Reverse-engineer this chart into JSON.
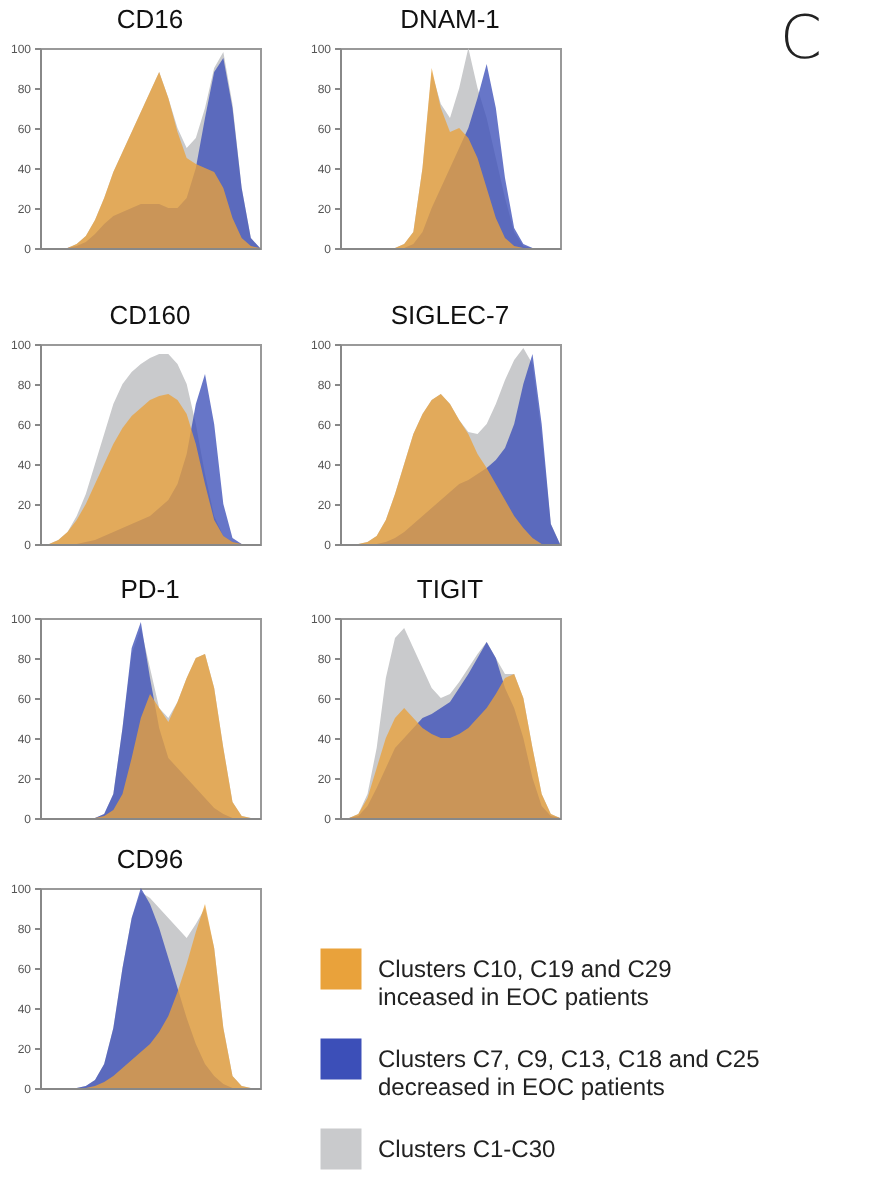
{
  "chart_data": [
    {
      "type": "area",
      "title": "CD16",
      "categories": [
        null,
        null,
        null,
        null,
        null,
        null,
        null,
        null,
        null,
        null,
        null,
        null,
        null,
        null,
        null,
        null,
        null,
        null,
        null,
        null,
        null,
        null,
        null,
        null,
        null
      ],
      "ylim": [
        0,
        100
      ],
      "yticks": [
        0,
        20,
        40,
        60,
        80,
        100
      ],
      "tick_labels": "y",
      "series": [
        {
          "color": "#e9a23b",
          "values": [
            0,
            0,
            0,
            0,
            2,
            6,
            14,
            25,
            38,
            48,
            58,
            68,
            78,
            88,
            75,
            58,
            45,
            42,
            40,
            38,
            30,
            15,
            5,
            1,
            0
          ]
        },
        {
          "color": "#3c4fb8",
          "values": [
            0,
            0,
            0,
            0,
            1,
            3,
            7,
            12,
            16,
            18,
            20,
            22,
            22,
            22,
            20,
            20,
            25,
            40,
            65,
            88,
            95,
            70,
            30,
            5,
            0
          ]
        },
        {
          "color": "#c9cacc",
          "values": [
            0,
            0,
            0,
            0,
            2,
            6,
            14,
            25,
            38,
            48,
            58,
            68,
            78,
            88,
            75,
            60,
            50,
            55,
            70,
            90,
            98,
            72,
            30,
            5,
            0
          ]
        }
      ]
    },
    {
      "type": "area",
      "title": "DNAM-1",
      "annotations": [
        "C"
      ],
      "categories": [
        null,
        null,
        null,
        null,
        null,
        null,
        null,
        null,
        null,
        null,
        null,
        null,
        null,
        null,
        null,
        null,
        null,
        null,
        null,
        null,
        null,
        null,
        null,
        null,
        null
      ],
      "ylim": [
        0,
        100
      ],
      "yticks": [
        0,
        20,
        40,
        60,
        80,
        100
      ],
      "tick_labels": "y",
      "series": [
        {
          "color": "#e9a23b",
          "values": [
            0,
            0,
            0,
            0,
            0,
            0,
            0,
            2,
            8,
            40,
            90,
            70,
            58,
            60,
            55,
            45,
            30,
            15,
            5,
            1,
            0,
            0,
            0,
            0,
            0
          ]
        },
        {
          "color": "#3c4fb8",
          "values": [
            0,
            0,
            0,
            0,
            0,
            0,
            0,
            0,
            2,
            8,
            20,
            30,
            40,
            50,
            60,
            75,
            92,
            70,
            35,
            10,
            2,
            0,
            0,
            0,
            0
          ]
        },
        {
          "color": "#c9cacc",
          "values": [
            0,
            0,
            0,
            0,
            0,
            0,
            0,
            2,
            8,
            40,
            88,
            72,
            65,
            80,
            100,
            80,
            65,
            45,
            25,
            8,
            1,
            0,
            0,
            0,
            0
          ]
        }
      ]
    },
    {
      "type": "area",
      "title": "CD160",
      "categories": [
        null,
        null,
        null,
        null,
        null,
        null,
        null,
        null,
        null,
        null,
        null,
        null,
        null,
        null,
        null,
        null,
        null,
        null,
        null,
        null,
        null,
        null,
        null,
        null,
        null
      ],
      "ylim": [
        0,
        100
      ],
      "yticks": [
        0,
        20,
        40,
        60,
        80,
        100
      ],
      "tick_labels": "y",
      "series": [
        {
          "color": "#e9a23b",
          "values": [
            0,
            0,
            2,
            6,
            12,
            20,
            30,
            40,
            50,
            58,
            64,
            68,
            72,
            74,
            75,
            72,
            65,
            50,
            30,
            12,
            4,
            1,
            0,
            0,
            0
          ]
        },
        {
          "color": "#3c4fb8",
          "values": [
            0,
            0,
            0,
            0,
            0,
            1,
            2,
            4,
            6,
            8,
            10,
            12,
            14,
            18,
            22,
            30,
            45,
            70,
            85,
            60,
            20,
            3,
            0,
            0,
            0
          ]
        },
        {
          "color": "#c9cacc",
          "values": [
            0,
            0,
            2,
            6,
            14,
            25,
            40,
            55,
            70,
            80,
            86,
            90,
            93,
            95,
            95,
            90,
            80,
            60,
            35,
            14,
            4,
            1,
            0,
            0,
            0
          ]
        }
      ]
    },
    {
      "type": "area",
      "title": "SIGLEC-7",
      "categories": [
        null,
        null,
        null,
        null,
        null,
        null,
        null,
        null,
        null,
        null,
        null,
        null,
        null,
        null,
        null,
        null,
        null,
        null,
        null,
        null,
        null,
        null,
        null,
        null,
        null
      ],
      "ylim": [
        0,
        100
      ],
      "yticks": [
        0,
        20,
        40,
        60,
        80,
        100
      ],
      "tick_labels": "y",
      "series": [
        {
          "color": "#e9a23b",
          "values": [
            0,
            0,
            0,
            1,
            4,
            12,
            25,
            40,
            55,
            65,
            72,
            75,
            70,
            62,
            55,
            45,
            38,
            30,
            22,
            14,
            8,
            3,
            0,
            0,
            0
          ]
        },
        {
          "color": "#3c4fb8",
          "values": [
            0,
            0,
            0,
            0,
            0,
            1,
            3,
            6,
            10,
            14,
            18,
            22,
            26,
            30,
            32,
            35,
            38,
            42,
            48,
            60,
            80,
            95,
            60,
            10,
            0
          ]
        },
        {
          "color": "#c9cacc",
          "values": [
            0,
            0,
            0,
            1,
            4,
            12,
            25,
            40,
            55,
            65,
            72,
            75,
            70,
            62,
            56,
            55,
            60,
            70,
            82,
            92,
            98,
            90,
            55,
            10,
            0
          ]
        }
      ]
    },
    {
      "type": "area",
      "title": "PD-1",
      "categories": [
        null,
        null,
        null,
        null,
        null,
        null,
        null,
        null,
        null,
        null,
        null,
        null,
        null,
        null,
        null,
        null,
        null,
        null,
        null,
        null,
        null,
        null,
        null,
        null,
        null
      ],
      "ylim": [
        0,
        100
      ],
      "yticks": [
        0,
        20,
        40,
        60,
        80,
        100
      ],
      "tick_labels": "y",
      "series": [
        {
          "color": "#e9a23b",
          "values": [
            0,
            0,
            0,
            0,
            0,
            0,
            0,
            1,
            4,
            12,
            30,
            50,
            62,
            55,
            48,
            58,
            70,
            80,
            82,
            65,
            35,
            8,
            1,
            0,
            0
          ]
        },
        {
          "color": "#3c4fb8",
          "values": [
            0,
            0,
            0,
            0,
            0,
            0,
            0,
            2,
            12,
            45,
            85,
            98,
            70,
            45,
            30,
            25,
            20,
            15,
            10,
            5,
            2,
            0,
            0,
            0,
            0
          ]
        },
        {
          "color": "#c9cacc",
          "values": [
            0,
            0,
            0,
            0,
            0,
            0,
            0,
            2,
            12,
            45,
            82,
            95,
            75,
            55,
            50,
            58,
            70,
            80,
            82,
            65,
            35,
            8,
            1,
            0,
            0
          ]
        }
      ]
    },
    {
      "type": "area",
      "title": "TIGIT",
      "categories": [
        null,
        null,
        null,
        null,
        null,
        null,
        null,
        null,
        null,
        null,
        null,
        null,
        null,
        null,
        null,
        null,
        null,
        null,
        null,
        null,
        null,
        null,
        null,
        null,
        null
      ],
      "ylim": [
        0,
        100
      ],
      "yticks": [
        0,
        20,
        40,
        60,
        80,
        100
      ],
      "tick_labels": "y",
      "series": [
        {
          "color": "#e9a23b",
          "values": [
            0,
            0,
            2,
            10,
            25,
            40,
            50,
            55,
            50,
            45,
            42,
            40,
            40,
            42,
            45,
            50,
            55,
            62,
            70,
            72,
            60,
            35,
            12,
            2,
            0
          ]
        },
        {
          "color": "#3c4fb8",
          "values": [
            0,
            0,
            1,
            6,
            15,
            25,
            35,
            40,
            45,
            50,
            52,
            55,
            58,
            65,
            72,
            80,
            88,
            80,
            65,
            55,
            40,
            20,
            6,
            1,
            0
          ]
        },
        {
          "color": "#c9cacc",
          "values": [
            0,
            0,
            2,
            12,
            35,
            70,
            90,
            95,
            85,
            75,
            65,
            60,
            62,
            68,
            75,
            82,
            88,
            80,
            72,
            72,
            60,
            35,
            12,
            2,
            0
          ]
        }
      ]
    },
    {
      "type": "area",
      "title": "CD96",
      "legend": "right",
      "categories": [
        null,
        null,
        null,
        null,
        null,
        null,
        null,
        null,
        null,
        null,
        null,
        null,
        null,
        null,
        null,
        null,
        null,
        null,
        null,
        null,
        null,
        null,
        null,
        null,
        null
      ],
      "ylim": [
        0,
        100
      ],
      "yticks": [
        0,
        20,
        40,
        60,
        80,
        100
      ],
      "tick_labels": "y",
      "series": [
        {
          "name": "Clusters C10, C19 and C29 inceased in EOC patients",
          "color": "#e9a23b",
          "values": [
            0,
            0,
            0,
            0,
            0,
            0,
            1,
            3,
            6,
            10,
            14,
            18,
            22,
            28,
            36,
            48,
            62,
            78,
            92,
            70,
            30,
            6,
            1,
            0,
            0
          ]
        },
        {
          "name": "Clusters C7, C9, C13, C18 and C25 decreased in EOC patients",
          "color": "#3c4fb8",
          "values": [
            0,
            0,
            0,
            0,
            0,
            1,
            4,
            12,
            30,
            60,
            85,
            100,
            92,
            80,
            65,
            50,
            35,
            22,
            12,
            6,
            2,
            0,
            0,
            0,
            0
          ]
        },
        {
          "name": "Clusters C1-C30",
          "color": "#c9cacc",
          "values": [
            0,
            0,
            0,
            0,
            0,
            1,
            4,
            12,
            30,
            60,
            85,
            98,
            95,
            90,
            85,
            80,
            75,
            82,
            90,
            70,
            30,
            6,
            1,
            0,
            0
          ]
        }
      ]
    }
  ]
}
